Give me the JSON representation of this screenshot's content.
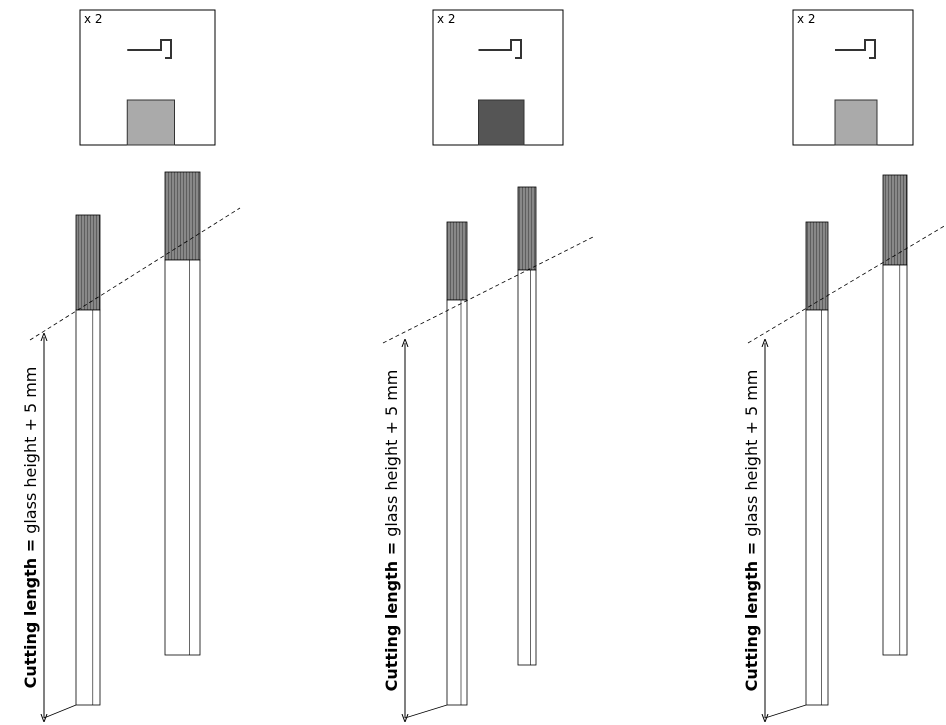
{
  "panels": [
    {
      "quantity": "x 2",
      "label_bold": "Cutting length =",
      "label_rest": " glass height + 5 mm"
    },
    {
      "quantity": "x 2",
      "label_bold": "Cutting length =",
      "label_rest": " glass height + 5 mm"
    },
    {
      "quantity": "x 2",
      "label_bold": "Cutting length =",
      "label_rest": " glass height + 5 mm"
    }
  ]
}
